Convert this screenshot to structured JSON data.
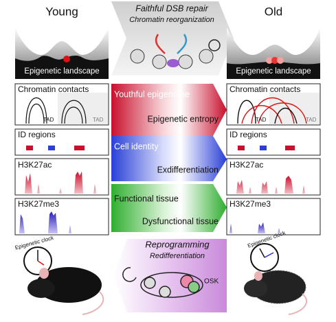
{
  "young": {
    "label": "Young",
    "landscape": "Epigenetic landscape",
    "contacts": "Chromatin contacts",
    "tads": [
      "TAD",
      "TAD"
    ],
    "id_regions": "ID regions",
    "h3k27ac": "H3K27ac",
    "h3k27me3": "H3K27me3",
    "clock": "Epigenetic clock"
  },
  "old": {
    "label": "Old",
    "landscape": "Epigenetic landscape",
    "contacts": "Chromatin contacts",
    "tads": [
      "TAD",
      "TAD"
    ],
    "id_regions": "ID regions",
    "h3k27ac": "H3K27ac",
    "h3k27me3": "H3K27me3",
    "clock": "Epigenetic clock"
  },
  "repair": {
    "title": "Faithful DSB repair",
    "subtitle": "Chromatin reorganization"
  },
  "transitions": [
    {
      "from": "Youthful epigenome",
      "to": "Epigenetic entropy"
    },
    {
      "from": "Cell identity",
      "to": "Exdifferentiation"
    },
    {
      "from": "Functional tissue",
      "to": "Dysfunctional tissue"
    }
  ],
  "reprogramming": {
    "title": "Reprogramming",
    "subtitle": "Redifferentiation",
    "factor": "OSK"
  }
}
